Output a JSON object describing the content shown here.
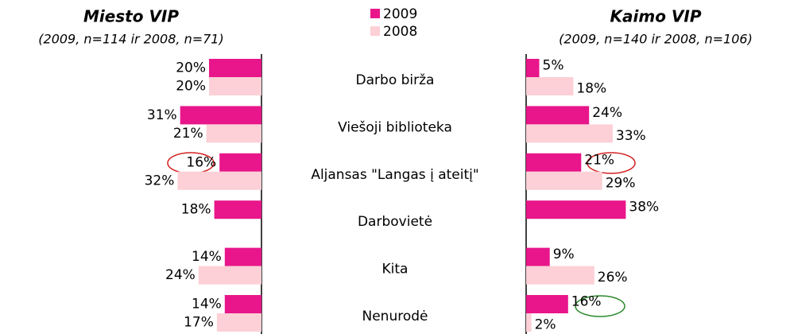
{
  "chart_data": [
    {
      "type": "butterfly_bar",
      "side": "left",
      "title": "Miesto VIP",
      "subtitle": "(2009, n=114 ir 2008, n=71)",
      "categories": [
        "Darbo birža",
        "Viešoji biblioteka",
        "Aljansas \"Langas į ateitį\"",
        "Darbovietė",
        "Kita",
        "Nenurodė"
      ],
      "xlim": [
        0,
        40
      ],
      "series": [
        {
          "name": "2009",
          "color": "#e8168a",
          "values": [
            20,
            31,
            16,
            18,
            14,
            14
          ],
          "value_labels": [
            "20%",
            "31%",
            "16%",
            "18%",
            "14%",
            "14%"
          ]
        },
        {
          "name": "2008",
          "color": "#fcd0d6",
          "values": [
            20,
            21,
            32,
            null,
            24,
            17
          ],
          "value_labels": [
            "20%",
            "21%",
            "32%",
            null,
            "24%",
            "17%"
          ]
        }
      ]
    },
    {
      "type": "butterfly_bar",
      "side": "right",
      "title": "Kaimo VIP",
      "subtitle": "(2009, n=140 ir 2008, n=106)",
      "categories": [
        "Darbo birža",
        "Viešoji biblioteka",
        "Aljansas \"Langas į ateitį\"",
        "Darbovietė",
        "Kita",
        "Nenurodė"
      ],
      "xlim": [
        0,
        40
      ],
      "series": [
        {
          "name": "2009",
          "color": "#e8168a",
          "values": [
            5,
            24,
            21,
            38,
            9,
            16
          ],
          "value_labels": [
            "5%",
            "24%",
            "21%",
            "38%",
            "9%",
            "16%"
          ]
        },
        {
          "name": "2008",
          "color": "#fcd0d6",
          "values": [
            18,
            33,
            29,
            null,
            26,
            2
          ],
          "value_labels": [
            "18%",
            "33%",
            "29%",
            null,
            "26%",
            "2%"
          ]
        }
      ]
    }
  ]
}
